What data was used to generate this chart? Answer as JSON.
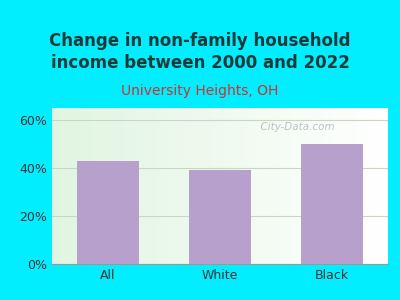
{
  "title": "Change in non-family household\nincome between 2000 and 2022",
  "subtitle": "University Heights, OH",
  "categories": [
    "All",
    "White",
    "Black"
  ],
  "values": [
    43,
    39,
    50
  ],
  "bar_color": "#b8a0cc",
  "title_color": "#1a3a3a",
  "subtitle_color": "#cc3333",
  "ylabel_ticks": [
    "0%",
    "20%",
    "40%",
    "60%"
  ],
  "ytick_vals": [
    0,
    20,
    40,
    60
  ],
  "ylim": [
    0,
    65
  ],
  "background_outer": "#00eeff",
  "grid_color": "#c8d8c0",
  "watermark": "  City-Data.com",
  "title_fontsize": 12,
  "subtitle_fontsize": 10,
  "tick_fontsize": 9,
  "bar_width": 0.55
}
